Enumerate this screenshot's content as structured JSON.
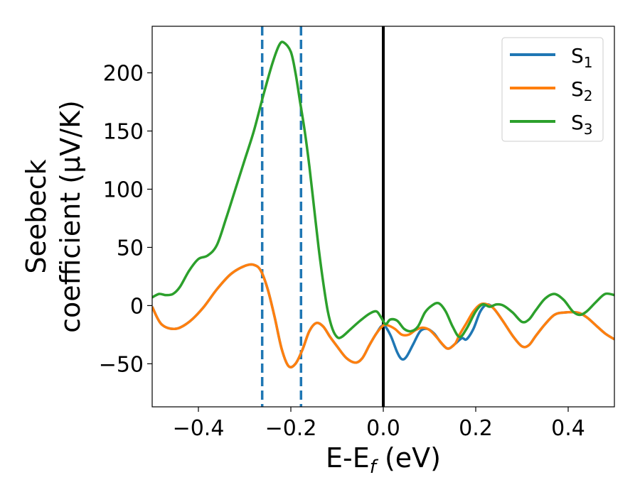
{
  "chart_data": {
    "type": "line",
    "xlabel_main": "E-E",
    "xlabel_sub": "f",
    "xlabel_unit": " (eV)",
    "ylabel_line1": "Seebeck",
    "ylabel_line2": "coefficient  (μV/K)",
    "xlim": [
      -0.5,
      0.5
    ],
    "ylim": [
      -87,
      240
    ],
    "x_ticks": [
      -0.4,
      -0.2,
      0.0,
      0.2,
      0.4
    ],
    "x_tick_labels": [
      "−0.4",
      "−0.2",
      "0.0",
      "0.2",
      "0.4"
    ],
    "y_ticks": [
      -50,
      0,
      50,
      100,
      150,
      200
    ],
    "y_tick_labels": [
      "−50",
      "0",
      "50",
      "100",
      "150",
      "200"
    ],
    "grid": false,
    "legend_position": "top-right",
    "series": [
      {
        "name": "S",
        "name_sub": "1",
        "color": "#1f77b4",
        "points": [
          [
            -0.5,
            -1
          ],
          [
            -0.48,
            -16
          ],
          [
            -0.45,
            -20
          ],
          [
            -0.42,
            -14
          ],
          [
            -0.39,
            -2
          ],
          [
            -0.36,
            14
          ],
          [
            -0.33,
            27
          ],
          [
            -0.3,
            34
          ],
          [
            -0.28,
            35
          ],
          [
            -0.265,
            30
          ],
          [
            -0.25,
            14
          ],
          [
            -0.235,
            -10
          ],
          [
            -0.22,
            -37
          ],
          [
            -0.205,
            -52
          ],
          [
            -0.19,
            -50
          ],
          [
            -0.175,
            -38
          ],
          [
            -0.16,
            -22
          ],
          [
            -0.145,
            -15
          ],
          [
            -0.13,
            -18
          ],
          [
            -0.115,
            -27
          ],
          [
            -0.1,
            -35
          ],
          [
            -0.08,
            -45
          ],
          [
            -0.06,
            -49
          ],
          [
            -0.045,
            -45
          ],
          [
            -0.03,
            -34
          ],
          [
            -0.015,
            -24
          ],
          [
            0.0,
            -17
          ],
          [
            0.015,
            -25
          ],
          [
            0.03,
            -40
          ],
          [
            0.04,
            -46
          ],
          [
            0.05,
            -44
          ],
          [
            0.065,
            -33
          ],
          [
            0.08,
            -22
          ],
          [
            0.095,
            -20
          ],
          [
            0.11,
            -24
          ],
          [
            0.125,
            -32
          ],
          [
            0.14,
            -37
          ],
          [
            0.155,
            -33
          ],
          [
            0.17,
            -28
          ],
          [
            0.18,
            -29
          ],
          [
            0.195,
            -20
          ],
          [
            0.21,
            -5
          ],
          [
            0.225,
            1
          ],
          [
            0.24,
            -3
          ],
          [
            0.26,
            -14
          ],
          [
            0.28,
            -26
          ],
          [
            0.3,
            -35
          ],
          [
            0.315,
            -34
          ],
          [
            0.33,
            -26
          ],
          [
            0.35,
            -16
          ],
          [
            0.37,
            -8
          ],
          [
            0.39,
            -6
          ],
          [
            0.42,
            -6
          ],
          [
            0.44,
            -10
          ],
          [
            0.46,
            -17
          ],
          [
            0.48,
            -24
          ],
          [
            0.5,
            -29
          ]
        ]
      },
      {
        "name": "S",
        "name_sub": "2",
        "color": "#ff7f0e",
        "points": [
          [
            -0.5,
            -1
          ],
          [
            -0.48,
            -16
          ],
          [
            -0.45,
            -20
          ],
          [
            -0.42,
            -14
          ],
          [
            -0.39,
            -2
          ],
          [
            -0.36,
            14
          ],
          [
            -0.33,
            27
          ],
          [
            -0.3,
            34
          ],
          [
            -0.28,
            35
          ],
          [
            -0.265,
            30
          ],
          [
            -0.25,
            14
          ],
          [
            -0.235,
            -10
          ],
          [
            -0.22,
            -37
          ],
          [
            -0.205,
            -52
          ],
          [
            -0.19,
            -50
          ],
          [
            -0.175,
            -38
          ],
          [
            -0.16,
            -22
          ],
          [
            -0.145,
            -15
          ],
          [
            -0.13,
            -18
          ],
          [
            -0.115,
            -27
          ],
          [
            -0.1,
            -35
          ],
          [
            -0.08,
            -45
          ],
          [
            -0.06,
            -49
          ],
          [
            -0.045,
            -45
          ],
          [
            -0.03,
            -34
          ],
          [
            -0.015,
            -24
          ],
          [
            0.0,
            -17
          ],
          [
            0.01,
            -17
          ],
          [
            0.025,
            -20
          ],
          [
            0.04,
            -25
          ],
          [
            0.055,
            -25
          ],
          [
            0.07,
            -21
          ],
          [
            0.085,
            -19
          ],
          [
            0.1,
            -21
          ],
          [
            0.115,
            -27
          ],
          [
            0.13,
            -34
          ],
          [
            0.14,
            -37
          ],
          [
            0.155,
            -33
          ],
          [
            0.165,
            -25
          ],
          [
            0.18,
            -15
          ],
          [
            0.195,
            -5
          ],
          [
            0.21,
            1
          ],
          [
            0.225,
            1
          ],
          [
            0.24,
            -3
          ],
          [
            0.26,
            -14
          ],
          [
            0.28,
            -26
          ],
          [
            0.3,
            -35
          ],
          [
            0.315,
            -34
          ],
          [
            0.33,
            -26
          ],
          [
            0.35,
            -16
          ],
          [
            0.37,
            -8
          ],
          [
            0.39,
            -6
          ],
          [
            0.42,
            -6
          ],
          [
            0.44,
            -10
          ],
          [
            0.46,
            -17
          ],
          [
            0.48,
            -24
          ],
          [
            0.5,
            -29
          ]
        ]
      },
      {
        "name": "S",
        "name_sub": "3",
        "color": "#2ca02c",
        "points": [
          [
            -0.5,
            7
          ],
          [
            -0.485,
            10
          ],
          [
            -0.47,
            9
          ],
          [
            -0.455,
            10
          ],
          [
            -0.44,
            16
          ],
          [
            -0.42,
            30
          ],
          [
            -0.4,
            40
          ],
          [
            -0.38,
            43
          ],
          [
            -0.36,
            52
          ],
          [
            -0.34,
            75
          ],
          [
            -0.32,
            100
          ],
          [
            -0.3,
            125
          ],
          [
            -0.28,
            150
          ],
          [
            -0.26,
            180
          ],
          [
            -0.24,
            208
          ],
          [
            -0.225,
            224
          ],
          [
            -0.215,
            226
          ],
          [
            -0.2,
            218
          ],
          [
            -0.19,
            200
          ],
          [
            -0.18,
            175
          ],
          [
            -0.17,
            150
          ],
          [
            -0.16,
            120
          ],
          [
            -0.15,
            85
          ],
          [
            -0.14,
            50
          ],
          [
            -0.13,
            20
          ],
          [
            -0.12,
            -5
          ],
          [
            -0.11,
            -20
          ],
          [
            -0.1,
            -27
          ],
          [
            -0.09,
            -27
          ],
          [
            -0.07,
            -20
          ],
          [
            -0.05,
            -13
          ],
          [
            -0.03,
            -7
          ],
          [
            -0.015,
            -5
          ],
          [
            -0.005,
            -10
          ],
          [
            0.005,
            -16
          ],
          [
            0.015,
            -12
          ],
          [
            0.03,
            -13
          ],
          [
            0.045,
            -20
          ],
          [
            0.06,
            -22
          ],
          [
            0.075,
            -18
          ],
          [
            0.09,
            -6
          ],
          [
            0.105,
            0
          ],
          [
            0.12,
            2
          ],
          [
            0.135,
            -5
          ],
          [
            0.15,
            -18
          ],
          [
            0.165,
            -27
          ],
          [
            0.18,
            -20
          ],
          [
            0.2,
            -5
          ],
          [
            0.215,
            1
          ],
          [
            0.23,
            -1
          ],
          [
            0.245,
            1
          ],
          [
            0.26,
            0
          ],
          [
            0.28,
            -6
          ],
          [
            0.3,
            -14
          ],
          [
            0.315,
            -12
          ],
          [
            0.33,
            -4
          ],
          [
            0.35,
            6
          ],
          [
            0.37,
            10
          ],
          [
            0.39,
            5
          ],
          [
            0.41,
            -5
          ],
          [
            0.425,
            -8
          ],
          [
            0.44,
            -5
          ],
          [
            0.46,
            3
          ],
          [
            0.48,
            10
          ],
          [
            0.5,
            9
          ]
        ]
      }
    ],
    "reference_lines": [
      {
        "x": -0.262,
        "color": "#1f77b4",
        "style": "dashed"
      },
      {
        "x": -0.178,
        "color": "#1f77b4",
        "style": "dashed"
      },
      {
        "x": 0.0,
        "color": "#000000",
        "style": "solid"
      }
    ]
  }
}
